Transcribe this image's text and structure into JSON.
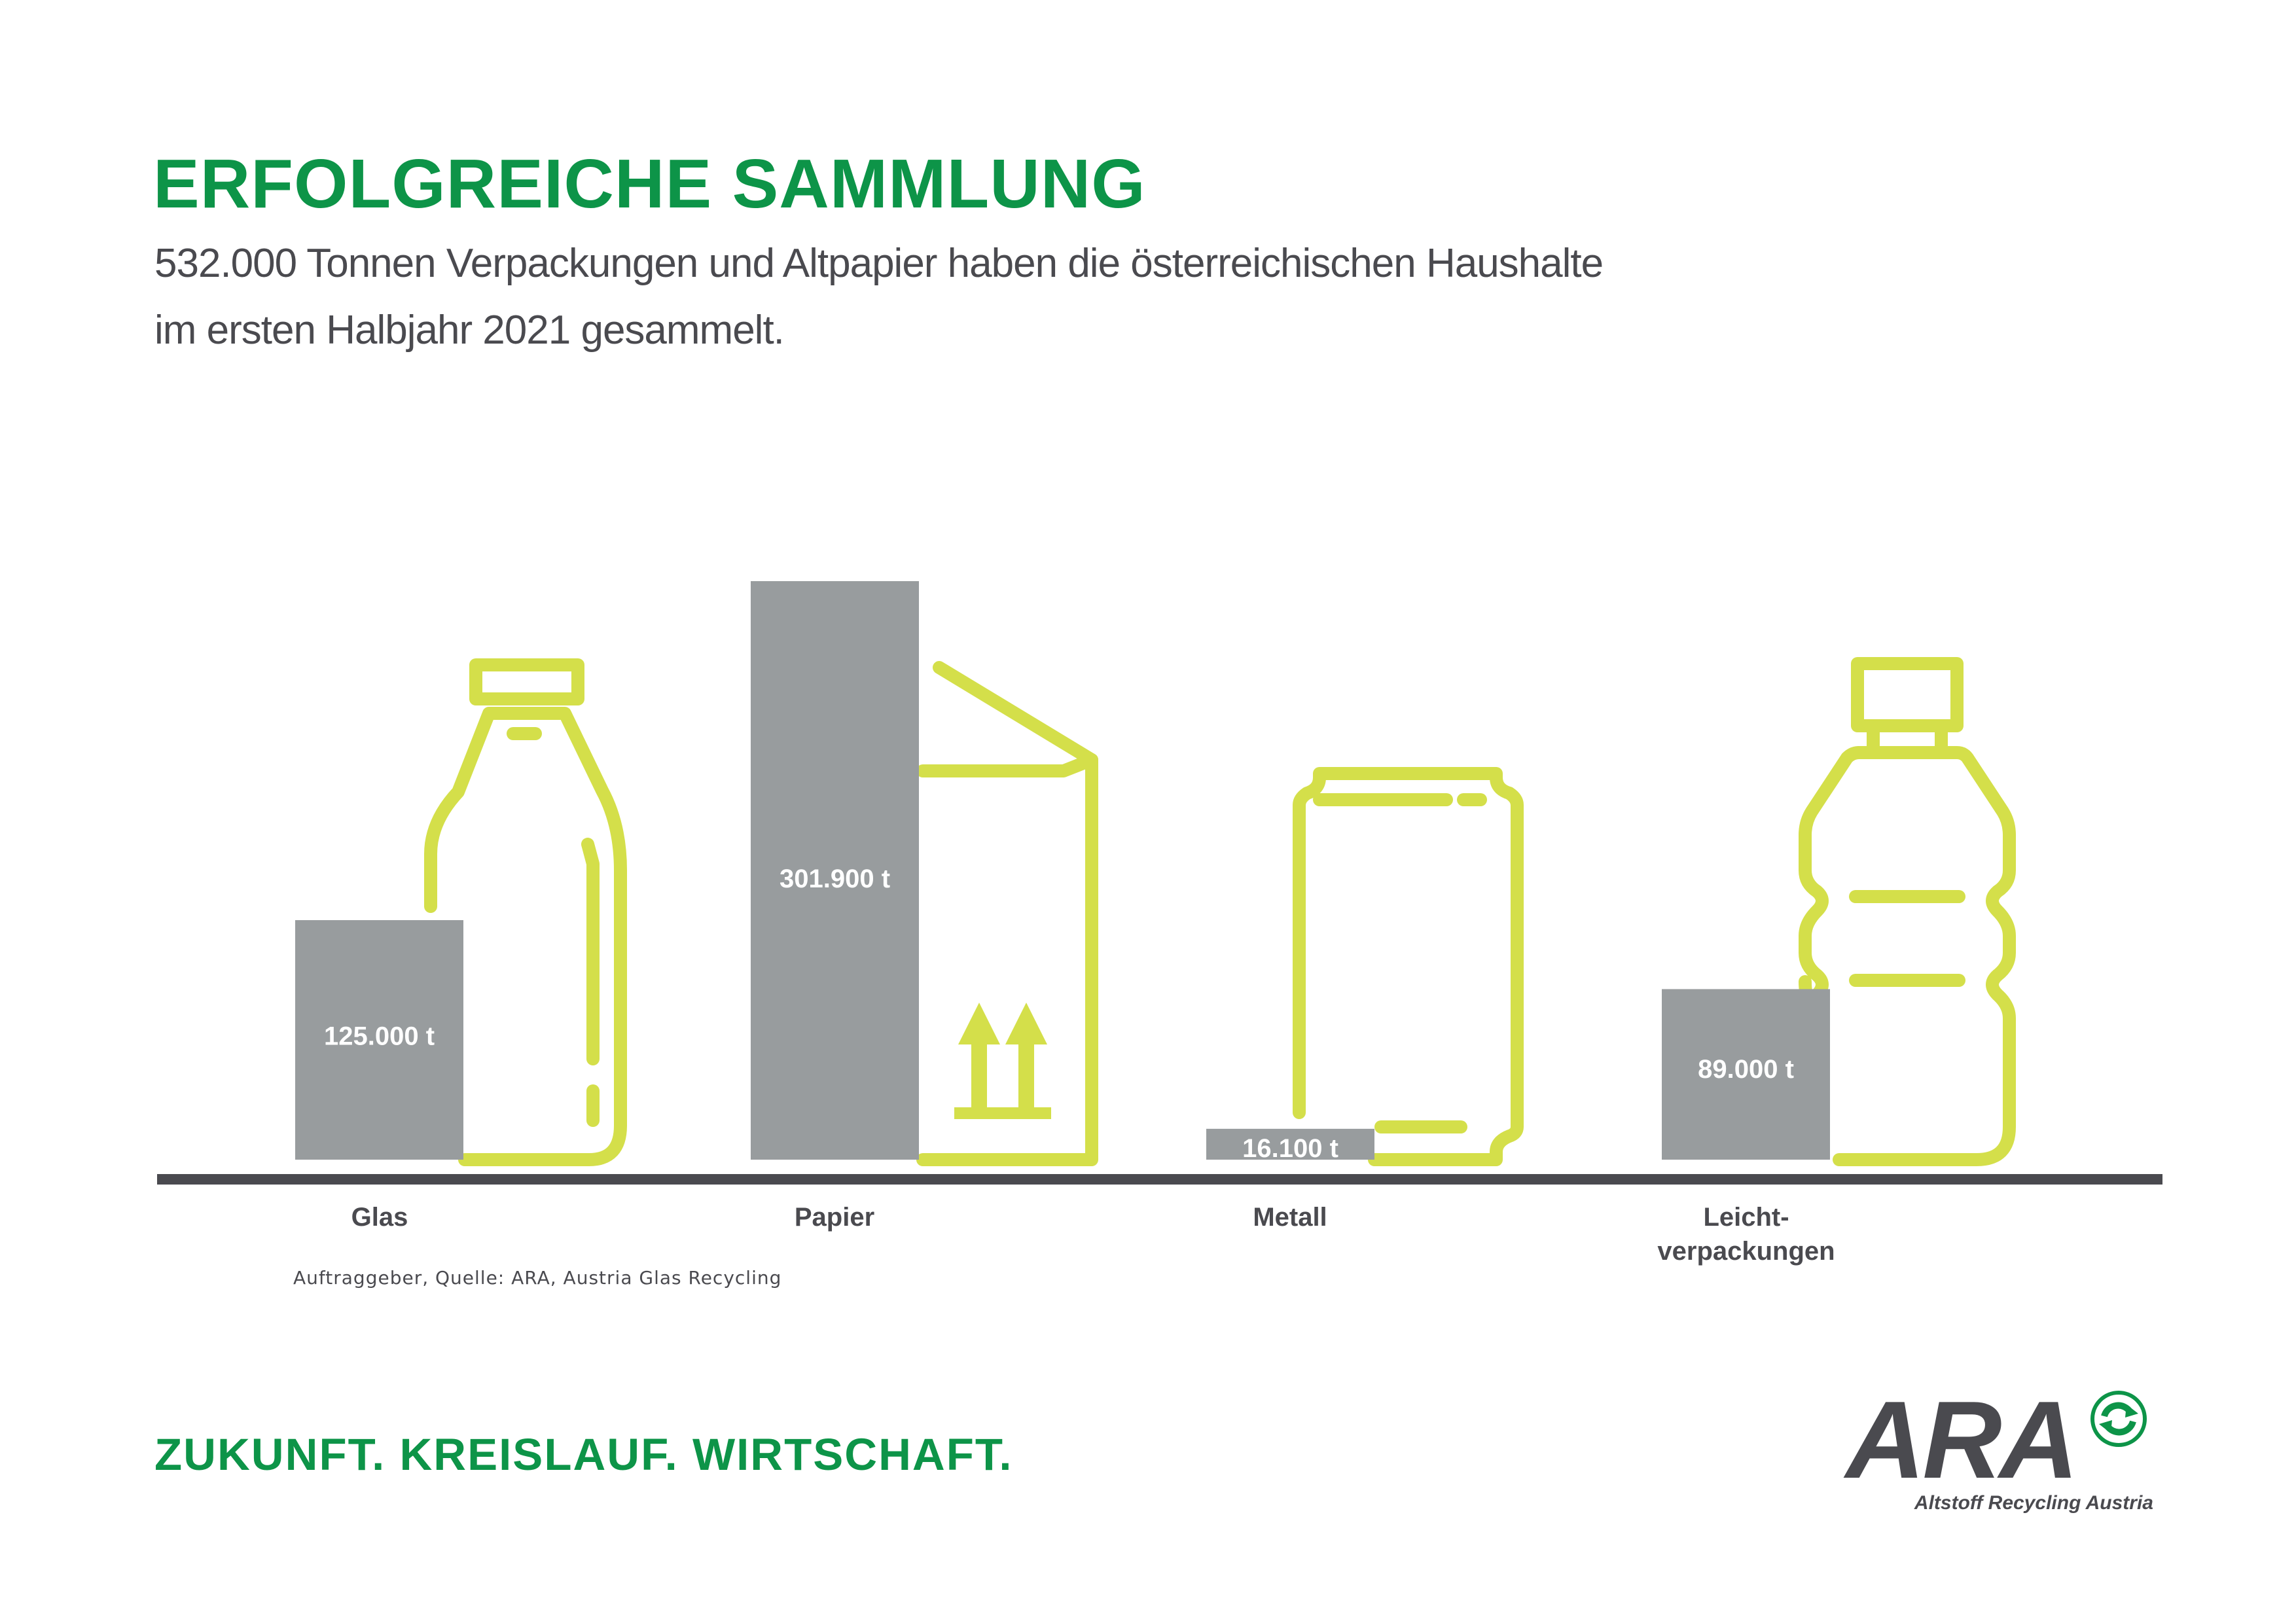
{
  "header": {
    "title": "ERFOLGREICHE SAMMLUNG",
    "subtitle_line1": "532.000 Tonnen Verpackungen und Altpapier haben die österreichischen Haushalte",
    "subtitle_line2": "im ersten Halbjahr 2021 gesammelt."
  },
  "chart_data": {
    "type": "bar",
    "title": "ERFOLGREICHE SAMMLUNG",
    "xlabel": "",
    "ylabel": "",
    "unit": "t",
    "categories": [
      "Glas",
      "Papier",
      "Metall",
      "Leicht-\nverpackungen"
    ],
    "values": [
      125000,
      301900,
      16100,
      89000
    ],
    "value_labels": [
      "125.000 t",
      "301.900 t",
      "16.100 t",
      "89.000 t"
    ],
    "ylim": [
      0,
      301900
    ],
    "grid": false,
    "icons": [
      "glass-bottle-icon",
      "paper-box-icon",
      "metal-can-icon",
      "plastic-bottle-icon"
    ],
    "colors": {
      "bar": "#989c9e",
      "icon": "#d4df4a",
      "baseline": "#4a4a4f",
      "bar_label": "#ffffff",
      "category_label": "#4a4a4f"
    }
  },
  "source_note": "Auftraggeber, Quelle: ARA, Austria Glas Recycling",
  "footer": {
    "tagline": "ZUKUNFT. KREISLAUF. WIRTSCHAFT.",
    "logo_text": "ARA",
    "logo_subtext": "Altstoff Recycling Austria"
  },
  "colors": {
    "brand_green": "#0d9448",
    "text_dark": "#4a4a4f"
  }
}
